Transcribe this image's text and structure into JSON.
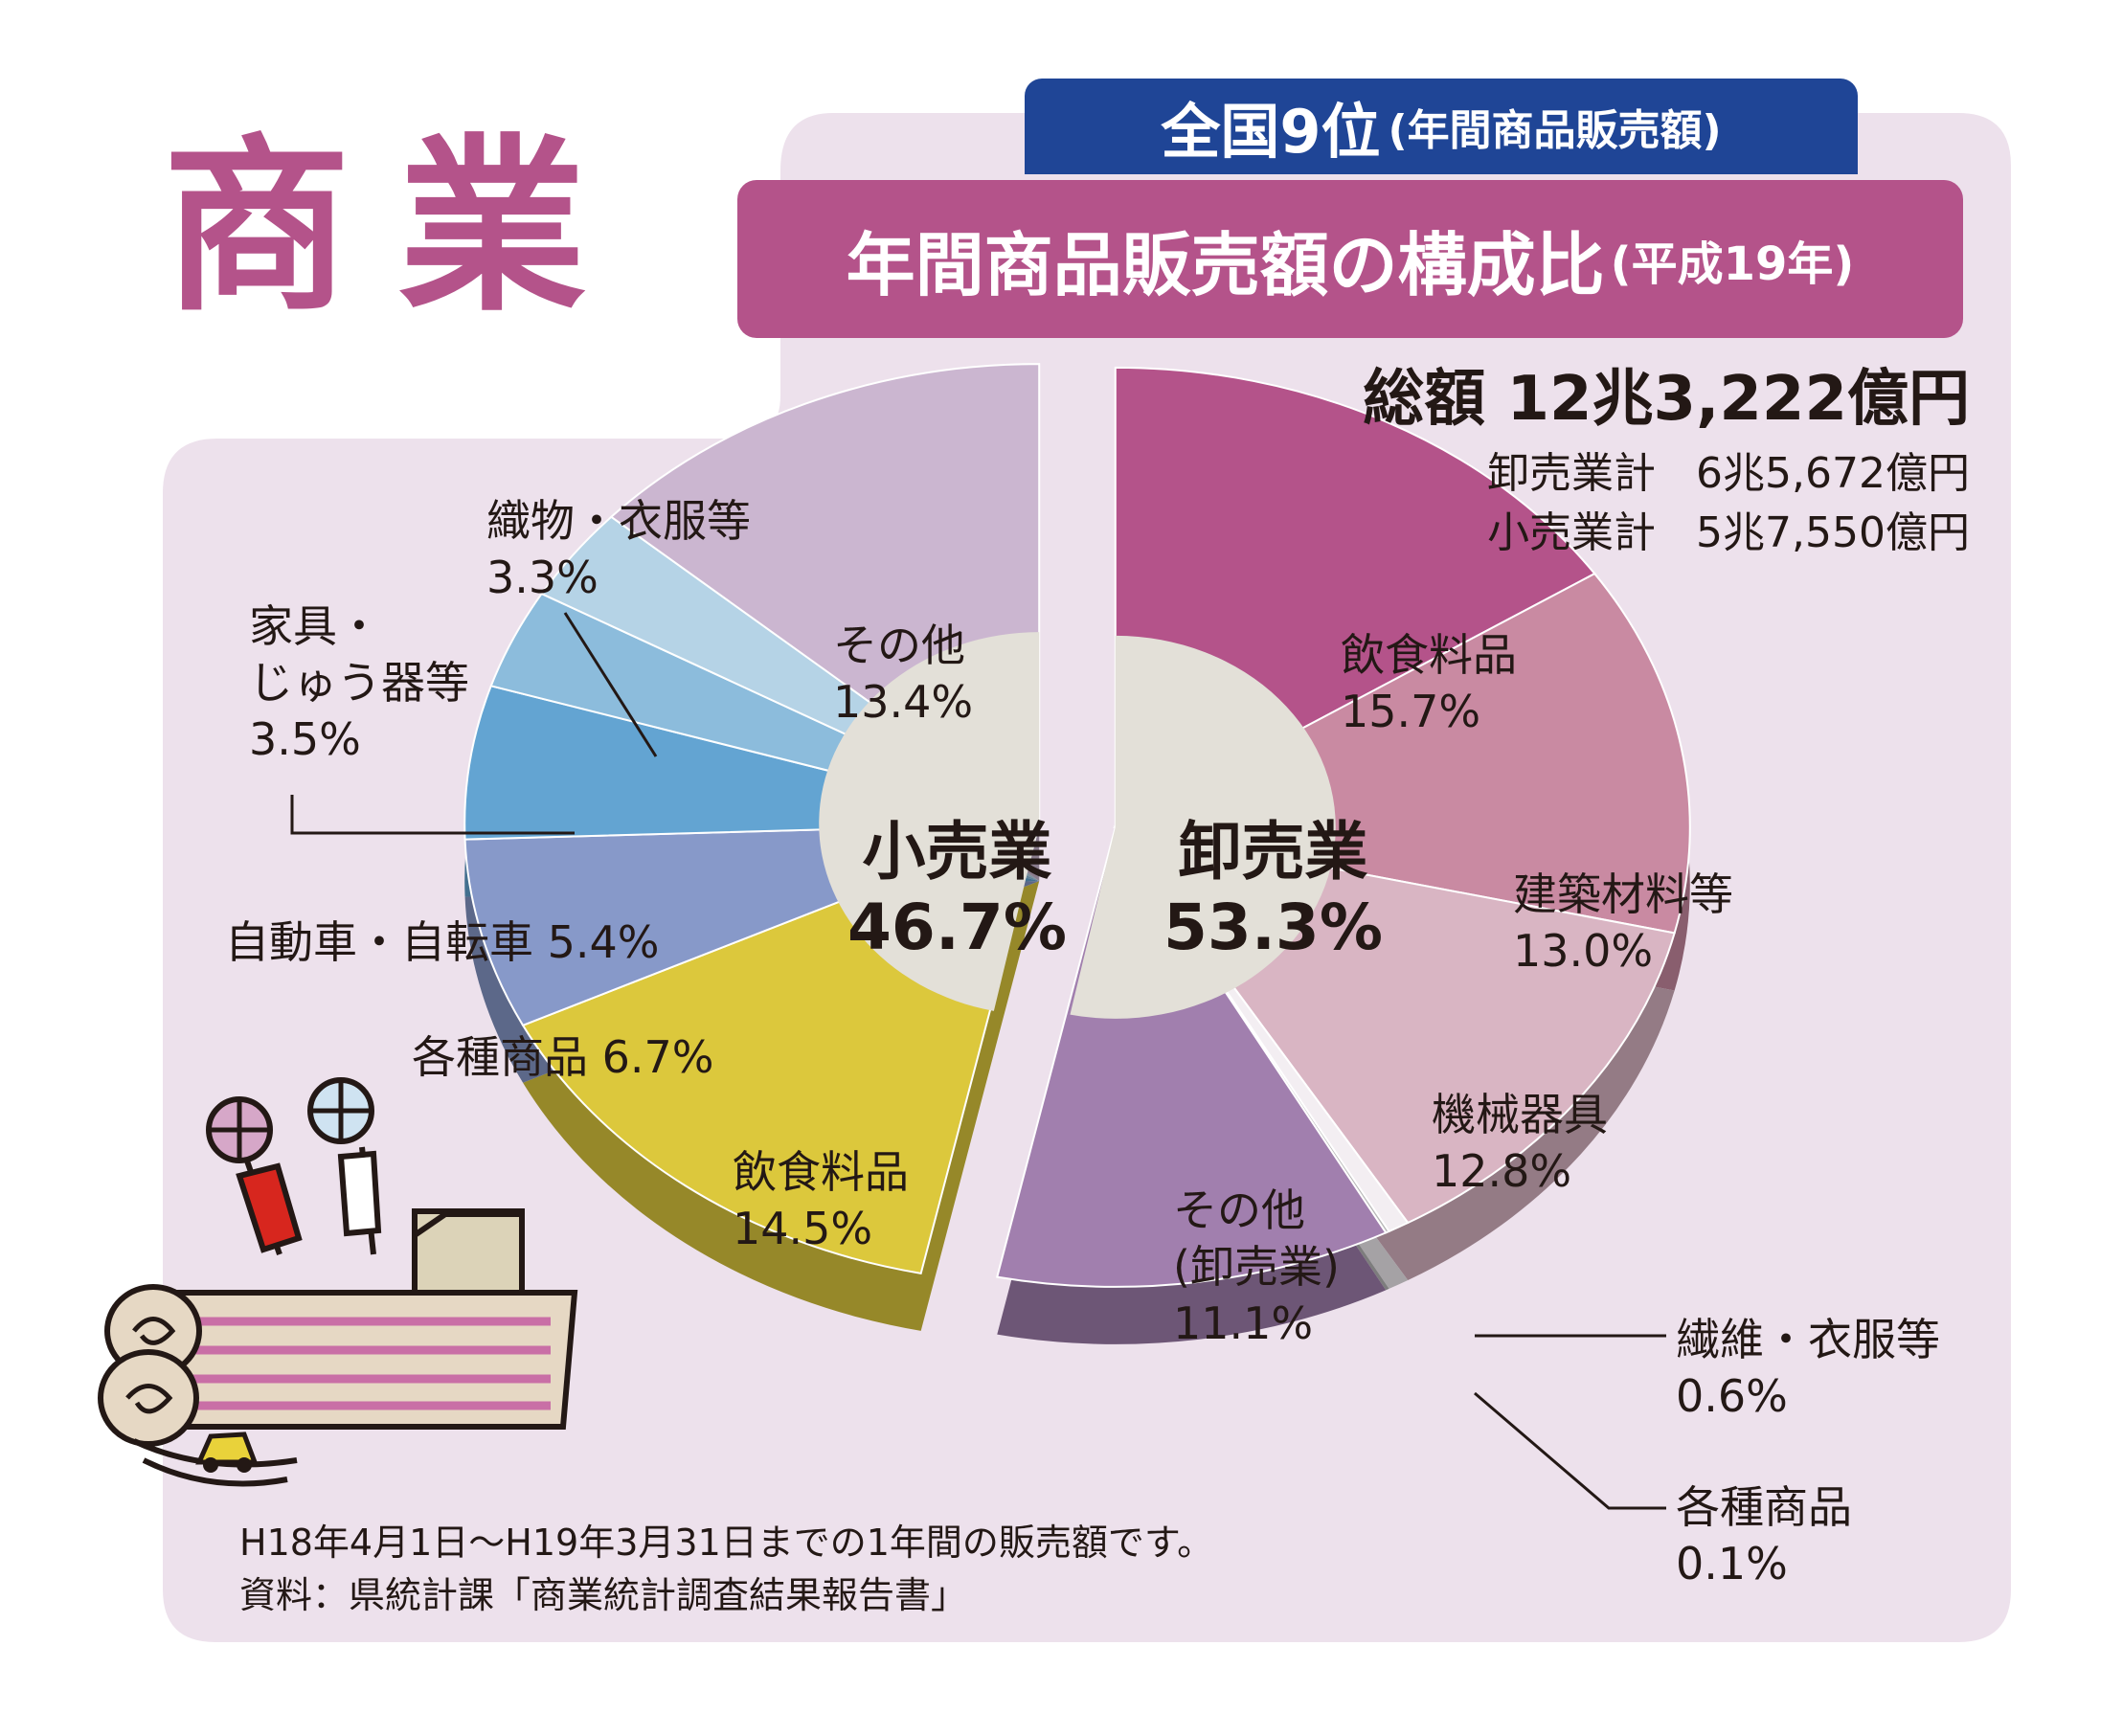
{
  "page": {
    "main_title": "商業",
    "rank": "全国9位",
    "rank_note": "(年間商品販売額)",
    "subtitle": "年間商品販売額の構成比",
    "subtitle_year": "(平成19年)",
    "total": "総額 12兆3,222億円",
    "wholesale_total_label": "卸売業計",
    "wholesale_total_value": "6兆5,672億円",
    "retail_total_label": "小売業計",
    "retail_total_value": "5兆7,550億円",
    "note_period": "H18年4月1日～H19年3月31日までの1年間の販売額です。",
    "note_source": "資料：県統計課「商業統計調査結果報告書」"
  },
  "chart_data": {
    "type": "pie",
    "groups": [
      {
        "name": "卸売業",
        "percent_label": "53.3%",
        "value": 53.3,
        "slices": [
          {
            "name": "飲食料品",
            "value": 15.7,
            "label": "15.7%",
            "color": "#b4538a"
          },
          {
            "name": "建築材料等",
            "value": 13.0,
            "label": "13.0%",
            "color": "#c98aa2"
          },
          {
            "name": "機械器具",
            "value": 12.8,
            "label": "12.8%",
            "color": "#d9b5c3"
          },
          {
            "name": "繊維・衣服等",
            "value": 0.6,
            "label": "0.6%",
            "color": "#f3eef2"
          },
          {
            "name": "各種商品",
            "value": 0.1,
            "label": "0.1%",
            "color": "#b8b8b8"
          },
          {
            "name": "その他(卸売業)",
            "value": 11.1,
            "label": "11.1%",
            "color": "#a17fae"
          }
        ]
      },
      {
        "name": "小売業",
        "percent_label": "46.7%",
        "value": 46.7,
        "slices": [
          {
            "name": "飲食料品",
            "value": 14.5,
            "label": "14.5%",
            "color": "#dcc83c"
          },
          {
            "name": "各種商品",
            "value": 6.7,
            "label": "6.7%",
            "color": "#8799c9"
          },
          {
            "name": "自動車・自転車",
            "value": 5.4,
            "label": "5.4%",
            "color": "#63a4d2"
          },
          {
            "name": "家具・じゅう器等",
            "value": 3.5,
            "label": "3.5%",
            "color": "#8cbcdc"
          },
          {
            "name": "織物・衣服等",
            "value": 3.3,
            "label": "3.3%",
            "color": "#b5d3e6"
          },
          {
            "name": "その他",
            "value": 13.4,
            "label": "13.4%",
            "color": "#cbb6d0"
          }
        ]
      }
    ],
    "labels": {
      "w_food": "飲食料品",
      "w_food_pct": "15.7%",
      "w_building": "建築材料等",
      "w_building_pct": "13.0%",
      "w_machine": "機械器具",
      "w_machine_pct": "12.8%",
      "w_textile": "繊維・衣服等",
      "w_textile_pct": "0.6%",
      "w_general": "各種商品",
      "w_general_pct": "0.1%",
      "w_other_1": "その他",
      "w_other_2": "(卸売業)",
      "w_other_pct": "11.1%",
      "r_food": "飲食料品",
      "r_food_pct": "14.5%",
      "r_general": "各種商品 6.7%",
      "r_auto": "自動車・自転車 5.4%",
      "r_furniture_1": "家具・",
      "r_furniture_2": "じゅう器等",
      "r_furniture_pct": "3.5%",
      "r_textile": "織物・衣服等",
      "r_textile_pct": "3.3%",
      "r_other": "その他",
      "r_other_pct": "13.4%"
    }
  }
}
